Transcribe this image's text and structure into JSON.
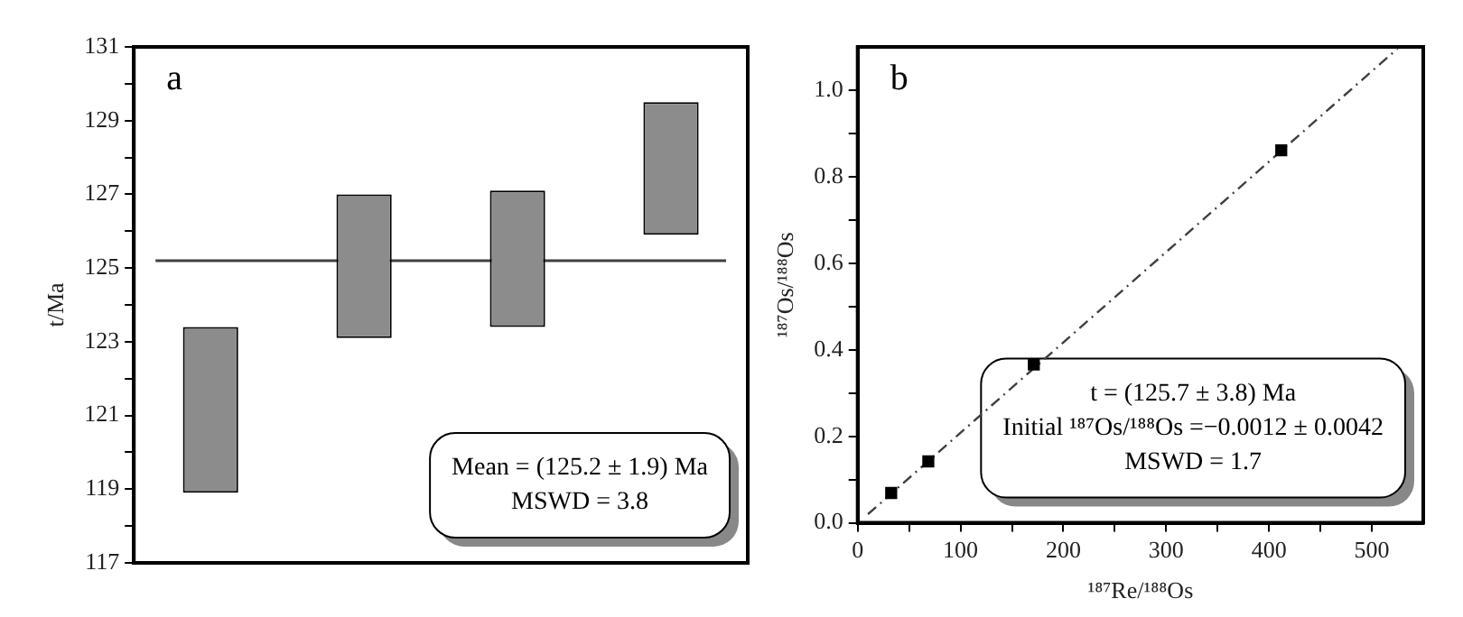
{
  "chart_data": [
    {
      "type": "bar",
      "categories": [
        null,
        null,
        null,
        null
      ],
      "base": [
        118.9,
        123.1,
        123.4,
        125.9
      ],
      "values": [
        4.5,
        3.9,
        3.7,
        3.6
      ],
      "color": "#8c8c8c",
      "ylabel": "t/Ma",
      "ylim": [
        117,
        131
      ],
      "yticks": [
        117,
        {
          "value": 118,
          "label": null
        },
        119,
        {
          "value": 120,
          "label": null
        },
        121,
        {
          "value": 122,
          "label": null
        },
        123,
        {
          "value": 124,
          "label": null
        },
        125,
        {
          "value": 126,
          "label": null
        },
        127,
        {
          "value": 128,
          "label": null
        },
        129,
        {
          "value": 130,
          "label": null
        },
        131
      ],
      "ref_lines": [
        {
          "axis": "y",
          "value": 125.2,
          "color": "#404040"
        }
      ],
      "tick_labels": "y",
      "legend": false,
      "annotations": [
        "a",
        "Mean = (125.2 ± 1.9) Ma",
        "MSWD = 3.8"
      ]
    },
    {
      "type": "scatter",
      "series": [
        {
          "type": "scatter",
          "color": "#000000",
          "marker": "square",
          "x": [
            32.6,
            68.7,
            171.3,
            411.9
          ],
          "values": [
            0.069,
            0.142,
            0.366,
            0.861
          ]
        },
        {
          "type": "line",
          "color": "#404040",
          "line_style": "dashed",
          "x": [
            10,
            525
          ],
          "values": [
            0.02,
            1.096
          ]
        }
      ],
      "xlabel": "¹⁸⁷Re/¹⁸⁸Os",
      "ylabel": "¹⁸⁷Os/¹⁸⁸Os",
      "xlim": [
        0,
        550
      ],
      "xticks": [
        0,
        {
          "value": 50,
          "label": null
        },
        100,
        {
          "value": 150,
          "label": null
        },
        200,
        {
          "value": 250,
          "label": null
        },
        300,
        {
          "value": 350,
          "label": null
        },
        400,
        {
          "value": 450,
          "label": null
        },
        500
      ],
      "ylim": [
        0,
        1.1
      ],
      "yticks": [
        {
          "value": 0,
          "label": "0.0"
        },
        {
          "value": 0.1,
          "label": null
        },
        0.2,
        {
          "value": 0.3,
          "label": null
        },
        0.4,
        {
          "value": 0.5,
          "label": null
        },
        0.6,
        {
          "value": 0.7,
          "label": null
        },
        0.8,
        {
          "value": 0.9,
          "label": null
        },
        {
          "value": 1.0,
          "label": "1.0"
        }
      ],
      "legend": false,
      "annotations": [
        "b",
        "t = (125.7 ± 3.8) Ma",
        "Initial ¹⁸⁷Os/¹⁸⁸Os =−0.0012 ± 0.0042",
        "MSWD = 1.7"
      ]
    }
  ]
}
